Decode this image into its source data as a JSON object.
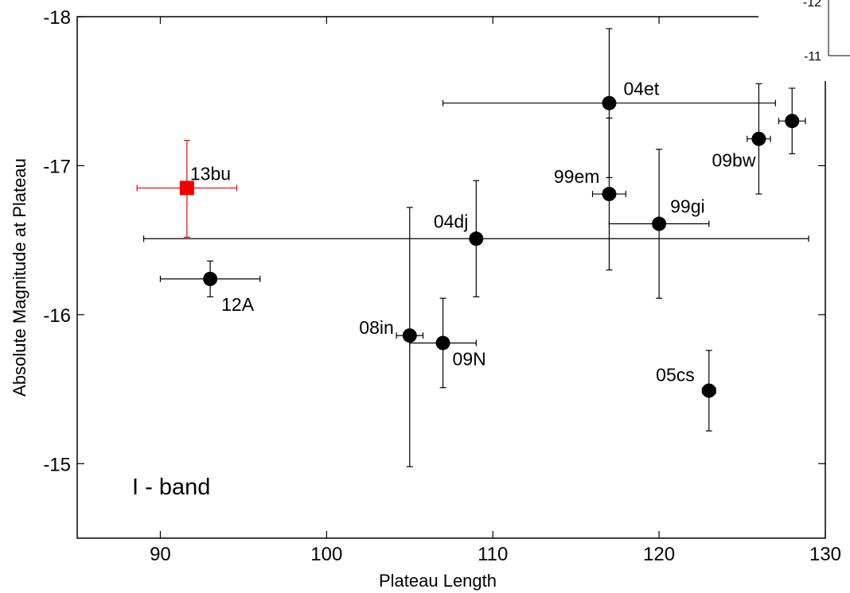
{
  "chart_data": {
    "type": "scatter",
    "title": "",
    "xlabel": "Plateau Length",
    "ylabel": "Absolute Magnitude at Plateau",
    "xlim": [
      85,
      130
    ],
    "ylim": [
      -14.5,
      -18
    ],
    "y_reversed": true,
    "xticks": [
      90,
      100,
      110,
      120,
      130
    ],
    "yticks": [
      -15,
      -16,
      -17,
      -18
    ],
    "grid": false,
    "annotation": "I - band",
    "colors": {
      "default": "#000000",
      "highlight": "#ee0000"
    },
    "points": [
      {
        "label": "13bu",
        "x": 91.6,
        "y": -16.85,
        "xerr": 3.0,
        "yerr_low": 0.32,
        "yerr_high": 0.33,
        "marker": "square",
        "color": "#ee0000"
      },
      {
        "label": "12A",
        "x": 93.0,
        "y": -16.24,
        "xerr_low": 3.0,
        "xerr_high": 3.0,
        "yerr_low": 0.12,
        "yerr_high": 0.12,
        "marker": "circle",
        "color": "#000000"
      },
      {
        "label": "04dj",
        "x": 109.0,
        "y": -16.51,
        "xerr_low": 20.0,
        "xerr_high": 20.0,
        "yerr_low": 0.39,
        "yerr_high": 0.39,
        "marker": "circle",
        "color": "#000000"
      },
      {
        "label": "08in",
        "x": 105.0,
        "y": -15.86,
        "xerr_low": 0.8,
        "xerr_high": 0.8,
        "yerr_low": 0.86,
        "yerr_high": 0.88,
        "marker": "circle",
        "color": "#000000"
      },
      {
        "label": "09N",
        "x": 107.0,
        "y": -15.81,
        "xerr_low": 2.0,
        "xerr_high": 2.0,
        "yerr_low": 0.3,
        "yerr_high": 0.3,
        "marker": "circle",
        "color": "#000000"
      },
      {
        "label": "04et",
        "x": 117.0,
        "y": -17.42,
        "xerr_low": 10.0,
        "xerr_high": 10.0,
        "yerr_low": 0.5,
        "yerr_high": 0.5,
        "marker": "circle",
        "color": "#000000"
      },
      {
        "label": "99em",
        "x": 117.0,
        "y": -16.81,
        "xerr_low": 1.0,
        "xerr_high": 1.0,
        "yerr_low": 0.51,
        "yerr_high": 0.51,
        "marker": "circle",
        "color": "#000000"
      },
      {
        "label": "99gi",
        "x": 120.0,
        "y": -16.61,
        "xerr_low": 3.0,
        "xerr_high": 3.0,
        "yerr_low": 0.5,
        "yerr_high": 0.5,
        "marker": "circle",
        "color": "#000000"
      },
      {
        "label": "05cs",
        "x": 123.0,
        "y": -15.49,
        "xerr_low": 0.4,
        "xerr_high": 0.4,
        "yerr_low": 0.27,
        "yerr_high": 0.27,
        "marker": "circle",
        "color": "#000000"
      },
      {
        "label": "09bw",
        "x": 126.0,
        "y": -17.18,
        "xerr_low": 0.7,
        "xerr_high": 0.7,
        "yerr_low": 0.37,
        "yerr_high": 0.37,
        "marker": "circle",
        "color": "#000000"
      },
      {
        "label": "",
        "x": 128.0,
        "y": -17.3,
        "xerr_low": 0.8,
        "xerr_high": 0.8,
        "yerr_low": 0.22,
        "yerr_high": 0.22,
        "marker": "circle",
        "color": "#000000"
      }
    ]
  },
  "inset": {
    "ytick_labels": [
      "-12",
      "-11"
    ]
  }
}
